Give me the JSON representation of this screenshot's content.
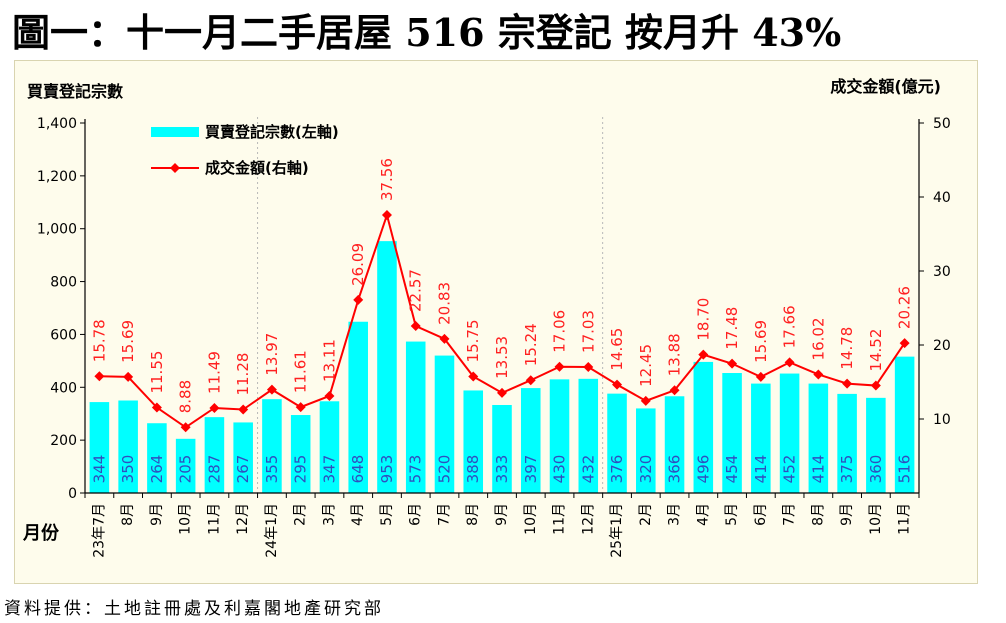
{
  "headline": "圖一：十一月二手居屋 516 宗登記 按月升 43%",
  "source": "資料提供：土地註冊處及利嘉閣地產研究部",
  "colors": {
    "bar": "#00ffff",
    "line": "#ff0000",
    "bar_label": "#2f4fbf",
    "line_label": "#ff2020"
  },
  "chart_data": {
    "type": "bar",
    "left_axis_title": "買賣登記宗數",
    "right_axis_title": "成交金額(億元)",
    "xlabel": "月份",
    "categories": [
      "23年7月",
      "8月",
      "9月",
      "10月",
      "11月",
      "12月",
      "24年1月",
      "2月",
      "3月",
      "4月",
      "5月",
      "6月",
      "7月",
      "8月",
      "9月",
      "10月",
      "11月",
      "12月",
      "25年1月",
      "2月",
      "3月",
      "4月",
      "5月",
      "6月",
      "7月",
      "8月",
      "9月",
      "10月",
      "11月"
    ],
    "left_ticks": [
      "0",
      "200",
      "400",
      "600",
      "800",
      "1,000",
      "1,200",
      "1,400"
    ],
    "right_ticks": [
      "10",
      "20",
      "30",
      "40",
      "50"
    ],
    "ylim_left": [
      0,
      1400
    ],
    "ylim_right": [
      0,
      50
    ],
    "series": [
      {
        "name": "買賣登記宗數(左軸)",
        "type": "bar",
        "axis": "left",
        "values": [
          344,
          350,
          264,
          205,
          287,
          267,
          355,
          295,
          347,
          648,
          953,
          573,
          520,
          388,
          333,
          397,
          430,
          432,
          376,
          320,
          366,
          496,
          454,
          414,
          452,
          414,
          375,
          360,
          516
        ]
      },
      {
        "name": "成交金額(右軸)",
        "type": "line",
        "axis": "right",
        "values": [
          15.78,
          15.69,
          11.55,
          8.88,
          11.49,
          11.28,
          13.97,
          11.61,
          13.11,
          26.09,
          37.56,
          22.57,
          20.83,
          15.75,
          13.53,
          15.24,
          17.06,
          17.03,
          14.65,
          12.45,
          13.88,
          18.7,
          17.48,
          15.69,
          17.66,
          16.02,
          14.78,
          14.52,
          20.26
        ],
        "labels": [
          "15.78",
          "15.69",
          "11.55",
          "8.88",
          "11.49",
          "11.28",
          "13.97",
          "11.61",
          "13.11",
          "26.09",
          "37.56",
          "22.57",
          "20.83",
          "15.75",
          "13.53",
          "15.24",
          "17.06",
          "17.03",
          "14.65",
          "12.45",
          "13.88",
          "18.70",
          "17.48",
          "15.69",
          "17.66",
          "16.02",
          "14.78",
          "14.52",
          "20.26"
        ]
      }
    ],
    "year_dividers_after_index": [
      5,
      17
    ],
    "legend_position": "top-left",
    "grid": false
  }
}
